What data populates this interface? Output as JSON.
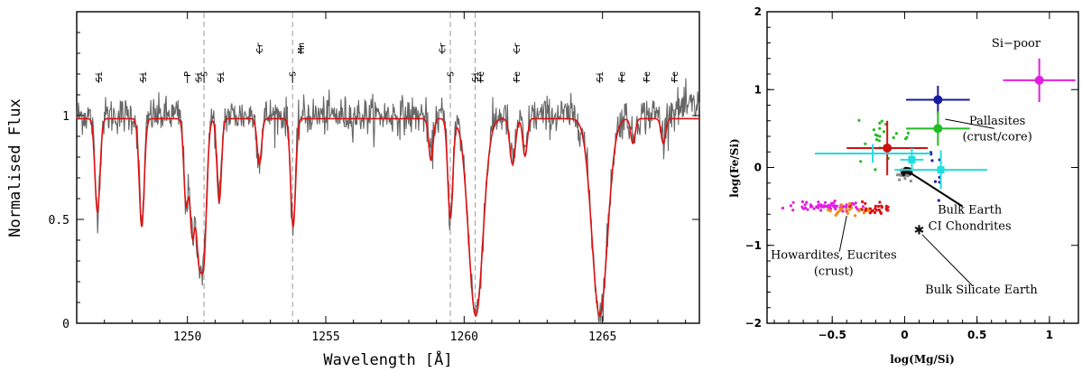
{
  "chart_data": [
    {
      "type": "line",
      "xlabel": "Wavelength [Å]",
      "ylabel": "Normalised Flux",
      "xlim": [
        1246,
        1268.5
      ],
      "ylim": [
        0,
        1.5
      ],
      "xticks": [
        {
          "value": 1250,
          "label": "1250"
        },
        {
          "value": 1255,
          "label": "1255"
        },
        {
          "value": 1260,
          "label": "1260"
        },
        {
          "value": 1265,
          "label": "1265"
        }
      ],
      "yticks": [
        {
          "value": 0,
          "label": "0"
        },
        {
          "value": 0.5,
          "label": "0.5"
        },
        {
          "value": 1,
          "label": "1"
        }
      ],
      "dashed_lines": [
        1250.6,
        1253.8,
        1259.5,
        1260.4
      ],
      "line_labels": [
        {
          "x": 1246.8,
          "text": "Si",
          "tier": 0
        },
        {
          "x": 1248.4,
          "text": "Si",
          "tier": 0
        },
        {
          "x": 1250.0,
          "text": "P",
          "tier": 0
        },
        {
          "x": 1250.4,
          "text": "Si",
          "tier": 0
        },
        {
          "x": 1250.6,
          "text": "S",
          "tier": 0
        },
        {
          "x": 1251.2,
          "text": "Si",
          "tier": 0
        },
        {
          "x": 1252.6,
          "text": "Cr",
          "tier": 1
        },
        {
          "x": 1253.8,
          "text": "S",
          "tier": 0
        },
        {
          "x": 1254.1,
          "text": "Mn",
          "tier": 1
        },
        {
          "x": 1259.2,
          "text": "Cr",
          "tier": 1
        },
        {
          "x": 1259.5,
          "text": "S",
          "tier": 0
        },
        {
          "x": 1260.4,
          "text": "Si",
          "tier": 0
        },
        {
          "x": 1260.6,
          "text": "Fe",
          "tier": 0
        },
        {
          "x": 1261.9,
          "text": "Cr",
          "tier": 1
        },
        {
          "x": 1261.9,
          "text": "Fe",
          "tier": 0
        },
        {
          "x": 1264.9,
          "text": "Si",
          "tier": 0
        },
        {
          "x": 1265.7,
          "text": "Fe",
          "tier": 0
        },
        {
          "x": 1266.6,
          "text": "Fe",
          "tier": 0
        },
        {
          "x": 1267.6,
          "text": "Fe",
          "tier": 0
        }
      ],
      "absorption_lines": [
        {
          "center": 1246.75,
          "depth": 0.45,
          "width": 0.09
        },
        {
          "center": 1248.35,
          "depth": 0.52,
          "width": 0.09
        },
        {
          "center": 1249.95,
          "depth": 0.4,
          "width": 0.08
        },
        {
          "center": 1250.18,
          "depth": 0.55,
          "width": 0.1
        },
        {
          "center": 1250.42,
          "depth": 0.62,
          "width": 0.11
        },
        {
          "center": 1250.58,
          "depth": 0.66,
          "width": 0.11
        },
        {
          "center": 1251.15,
          "depth": 0.4,
          "width": 0.08
        },
        {
          "center": 1252.6,
          "depth": 0.22,
          "width": 0.08
        },
        {
          "center": 1253.82,
          "depth": 0.52,
          "width": 0.09
        },
        {
          "center": 1258.8,
          "depth": 0.2,
          "width": 0.08
        },
        {
          "center": 1259.5,
          "depth": 0.48,
          "width": 0.09
        },
        {
          "center": 1260.42,
          "depth": 0.95,
          "width": 0.26
        },
        {
          "center": 1261.75,
          "depth": 0.22,
          "width": 0.1
        },
        {
          "center": 1262.2,
          "depth": 0.18,
          "width": 0.08
        },
        {
          "center": 1264.9,
          "depth": 0.95,
          "width": 0.28
        },
        {
          "center": 1266.1,
          "depth": 0.12,
          "width": 0.08
        },
        {
          "center": 1267.2,
          "depth": 0.12,
          "width": 0.08
        }
      ],
      "series": [
        {
          "role": "observed",
          "color": "#666666"
        },
        {
          "role": "model",
          "color": "#dd1111"
        }
      ]
    },
    {
      "type": "scatter",
      "xlabel": "log(Mg/Si)",
      "ylabel": "log(Fe/Si)",
      "xlim": [
        -0.95,
        1.2
      ],
      "ylim": [
        -2,
        2
      ],
      "xticks": [
        {
          "value": -0.5,
          "label": "−0.5"
        },
        {
          "value": 0,
          "label": "0"
        },
        {
          "value": 0.5,
          "label": "0.5"
        },
        {
          "value": 1,
          "label": "1"
        }
      ],
      "yticks": [
        {
          "value": -2,
          "label": "−2"
        },
        {
          "value": -1,
          "label": "−1"
        },
        {
          "value": 0,
          "label": "0"
        },
        {
          "value": 1,
          "label": "1"
        },
        {
          "value": 2,
          "label": "2"
        }
      ],
      "error_points": [
        {
          "x": 0.93,
          "y": 1.12,
          "xerr": 0.25,
          "yerr": 0.28,
          "color": "#e020e0",
          "marker": "circle"
        },
        {
          "x": 0.23,
          "y": 0.87,
          "xerr": 0.22,
          "yerr": 0.18,
          "color": "#1a1aa0",
          "marker": "circle"
        },
        {
          "x": 0.23,
          "y": 0.5,
          "xerr": 0.22,
          "yerr": 0.22,
          "color": "#22bb22",
          "marker": "circle"
        },
        {
          "x": -0.12,
          "y": 0.25,
          "xerr": 0.28,
          "yerr": 0.35,
          "color": "#cc1111",
          "marker": "circle"
        },
        {
          "x": 0.05,
          "y": 0.1,
          "xerr": 0.08,
          "yerr": 0.15,
          "color": "#22dddd",
          "marker": "square"
        },
        {
          "x": -0.22,
          "y": 0.18,
          "xerr": 0.4,
          "yerr": 0.12,
          "color": "#22dddd",
          "marker": "none"
        },
        {
          "x": 0.25,
          "y": -0.03,
          "xerr": 0.32,
          "yerr": 0.25,
          "color": "#22dddd",
          "marker": "square"
        }
      ],
      "clusters": [
        {
          "name": "howardites-eucrites",
          "color": "#e020e0",
          "cx": -0.55,
          "cy": -0.5,
          "sx": 0.13,
          "sy": 0.03,
          "n": 70
        },
        {
          "name": "eucrites-orange",
          "color": "#f08a10",
          "cx": -0.38,
          "cy": -0.55,
          "sx": 0.1,
          "sy": 0.04,
          "n": 22
        },
        {
          "name": "eucrites-red",
          "color": "#dd1111",
          "cx": -0.18,
          "cy": -0.52,
          "sx": 0.07,
          "sy": 0.05,
          "n": 28
        },
        {
          "name": "green-scatter",
          "color": "#22bb22",
          "cx": -0.2,
          "cy": 0.38,
          "sx": 0.12,
          "sy": 0.14,
          "n": 22
        },
        {
          "name": "bulk-earth-ci",
          "color": "#111111",
          "cx": 0.02,
          "cy": -0.05,
          "sx": 0.02,
          "sy": 0.02,
          "n": 12
        },
        {
          "name": "grey-small",
          "color": "#888888",
          "cx": 0.0,
          "cy": -0.1,
          "sx": 0.03,
          "sy": 0.03,
          "n": 10
        },
        {
          "name": "blue-small",
          "color": "#1a1aa0",
          "cx": 0.22,
          "cy": 0.1,
          "sx": 0.02,
          "sy": 0.2,
          "n": 8
        }
      ],
      "special_points": [
        {
          "x": 0.1,
          "y": -0.8,
          "color": "#111111",
          "marker": "star"
        }
      ],
      "annotations": [
        {
          "text": "Si−poor",
          "x": 0.77,
          "y": 1.55
        },
        {
          "text": "Pallasites",
          "x": 0.64,
          "y": 0.55
        },
        {
          "text": "(crust/core)",
          "x": 0.64,
          "y": 0.35
        },
        {
          "text": "Bulk Earth",
          "x": 0.45,
          "y": -0.59
        },
        {
          "text": "CI Chondrites",
          "x": 0.45,
          "y": -0.8
        },
        {
          "text": "Howardites, Eucrites",
          "x": -0.49,
          "y": -1.17
        },
        {
          "text": "(crust)",
          "x": -0.49,
          "y": -1.38
        },
        {
          "text": "Bulk Silicate Earth",
          "x": 0.53,
          "y": -1.62
        }
      ],
      "leaders": [
        {
          "x1": 0.28,
          "y1": 0.62,
          "x2": 0.62,
          "y2": 0.5
        },
        {
          "x1": 0.04,
          "y1": -0.07,
          "x2": 0.4,
          "y2": -0.5
        },
        {
          "x1": -0.4,
          "y1": -0.62,
          "x2": -0.45,
          "y2": -1.08
        },
        {
          "x1": 0.12,
          "y1": -0.86,
          "x2": 0.47,
          "y2": -1.52
        }
      ]
    }
  ]
}
